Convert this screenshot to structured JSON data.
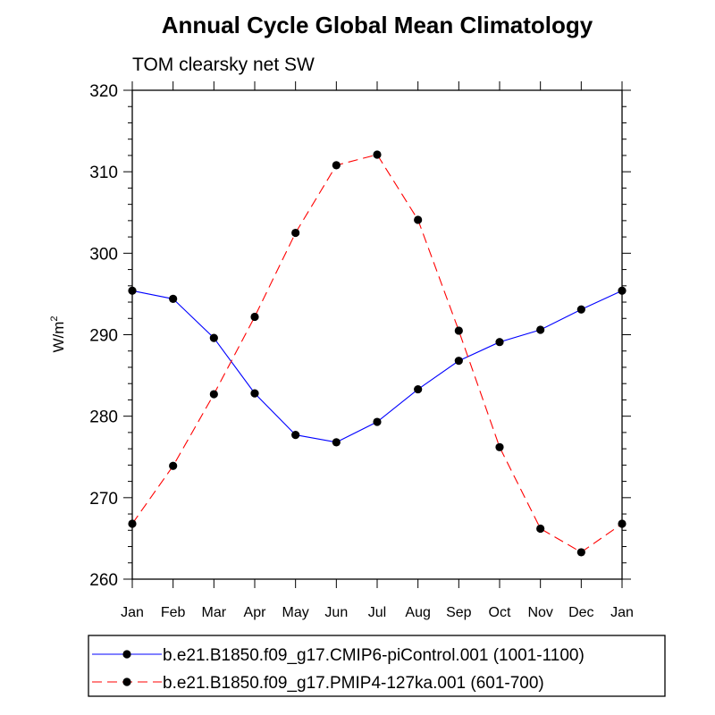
{
  "chart_data": {
    "type": "line",
    "title": "Annual Cycle Global Mean Climatology",
    "subtitle": "TOM clearsky net SW",
    "ylabel": "W/m",
    "ylabel_superscript": "2",
    "xlabel": "",
    "categories": [
      "Jan",
      "Feb",
      "Mar",
      "Apr",
      "May",
      "Jun",
      "Jul",
      "Aug",
      "Sep",
      "Oct",
      "Nov",
      "Dec",
      "Jan"
    ],
    "ylim": [
      260,
      320
    ],
    "yticks": [
      260,
      270,
      280,
      290,
      300,
      310,
      320
    ],
    "series": [
      {
        "name": "b.e21.B1850.f09_g17.CMIP6-piControl.001 (1001-1100)",
        "color": "#0000ff",
        "dash": "solid",
        "values": [
          295.4,
          294.4,
          289.6,
          282.8,
          277.7,
          276.8,
          279.3,
          283.3,
          286.8,
          289.1,
          290.6,
          293.1,
          295.4
        ]
      },
      {
        "name": "b.e21.B1850.f09_g17.PMIP4-127ka.001 (601-700)",
        "color": "#ff0000",
        "dash": "dashed",
        "values": [
          266.8,
          273.9,
          282.7,
          292.2,
          302.5,
          310.8,
          312.1,
          304.1,
          290.5,
          276.2,
          266.2,
          263.3,
          266.8
        ]
      }
    ]
  }
}
